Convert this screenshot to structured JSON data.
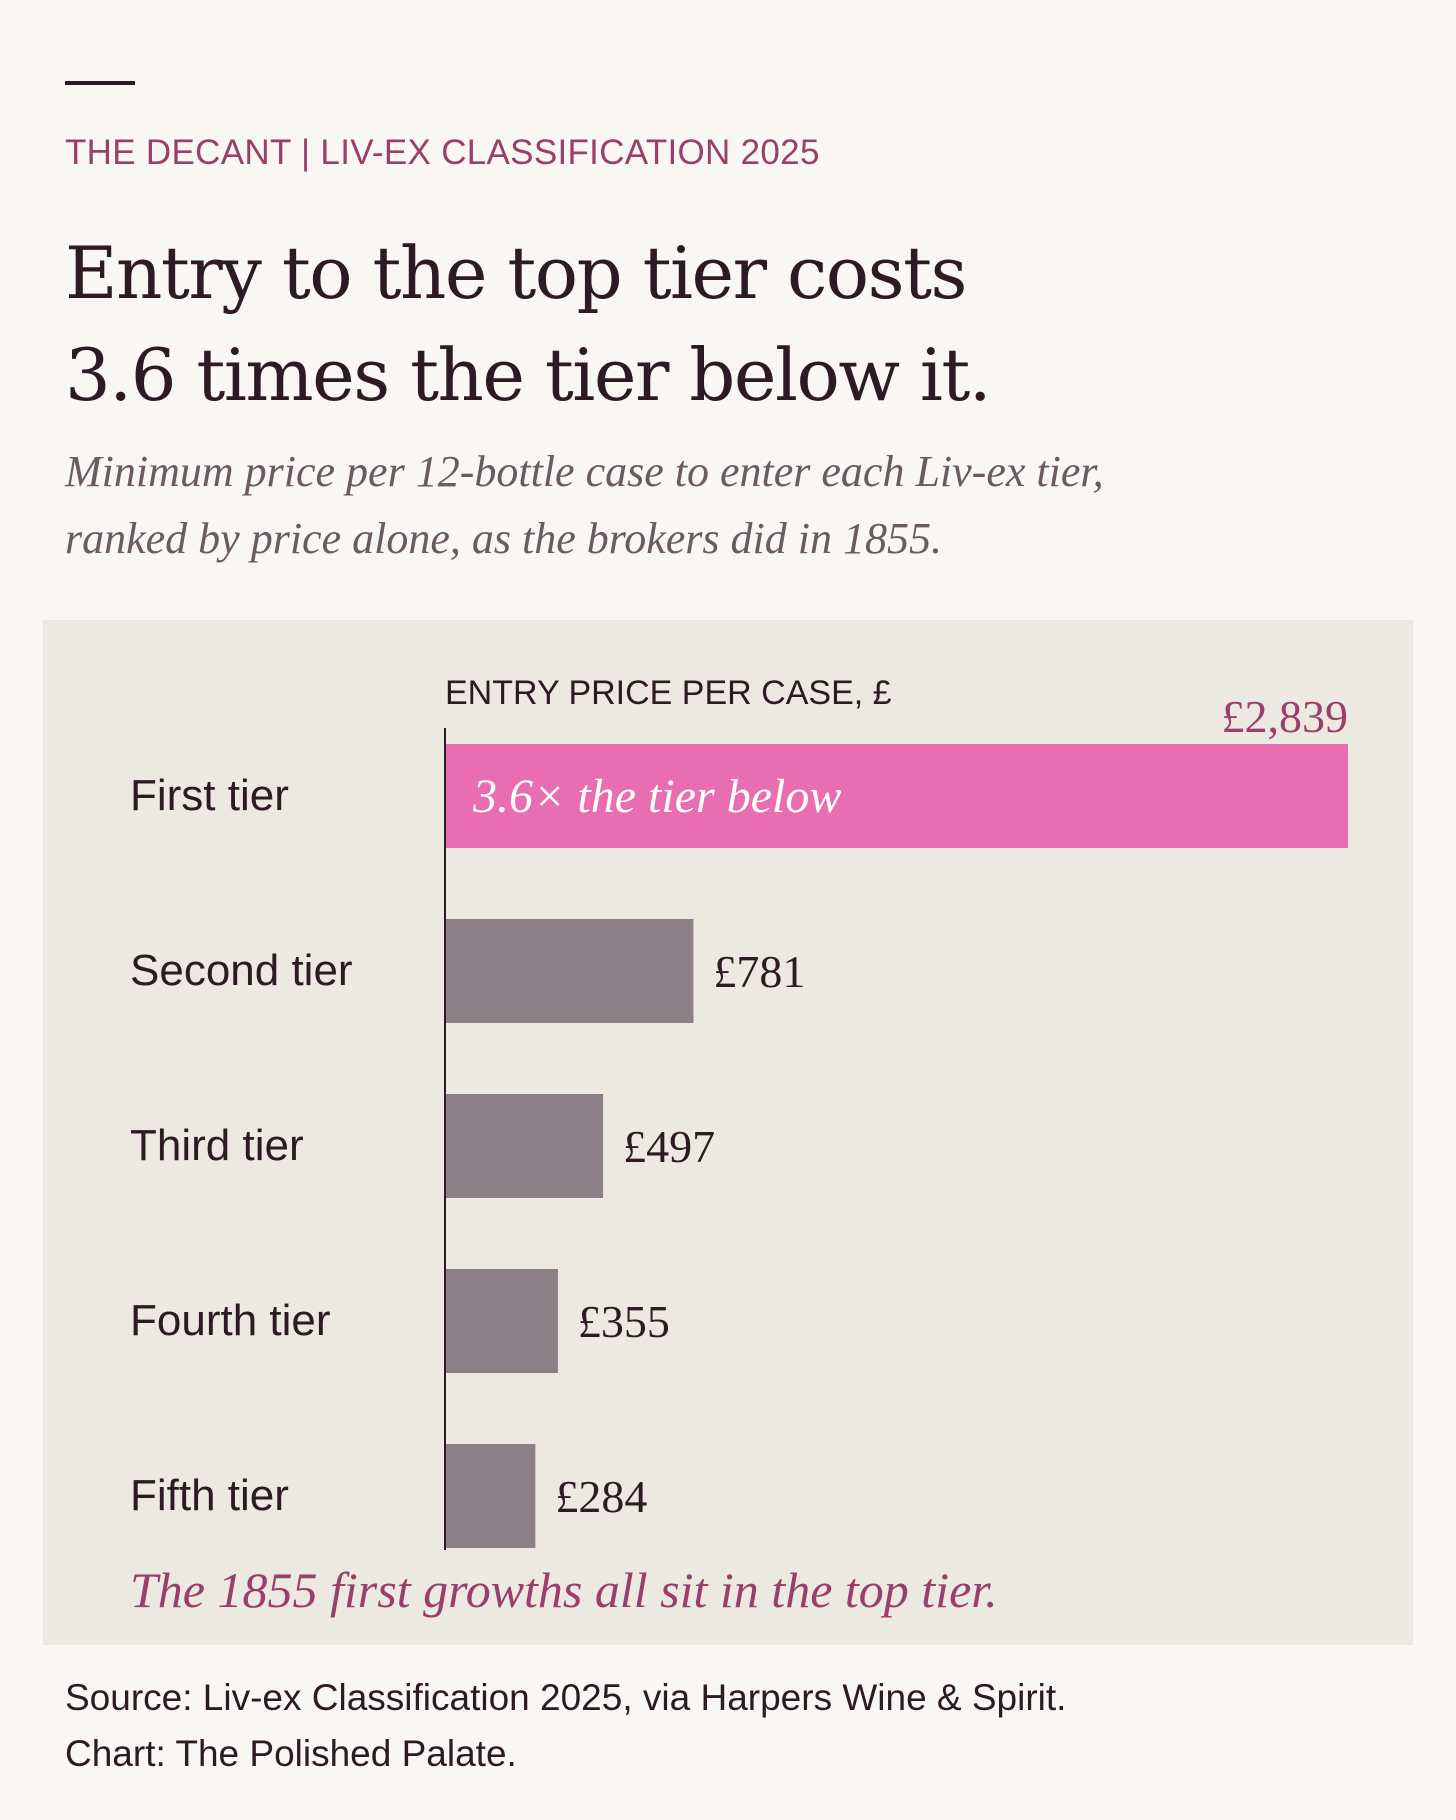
{
  "header": {
    "kicker": "THE DECANT | LIV-EX CLASSIFICATION 2025",
    "headline_line1": "Entry to the top tier costs",
    "headline_line2": "3.6 times the tier below it.",
    "subtitle_line1": "Minimum price per 12-bottle case to enter each Liv-ex tier,",
    "subtitle_line2": "ranked by price alone, as the brokers did in 1855."
  },
  "chart_data": {
    "type": "bar",
    "orientation": "horizontal",
    "axis_title": "ENTRY PRICE PER CASE, £",
    "categories": [
      "First tier",
      "Second tier",
      "Third tier",
      "Fourth tier",
      "Fifth tier"
    ],
    "values": [
      2839,
      781,
      497,
      355,
      284
    ],
    "value_labels": [
      "£2,839",
      "£781",
      "£497",
      "£355",
      "£284"
    ],
    "xlim": [
      0,
      2839
    ],
    "highlight_index": 0,
    "highlight_label": "3.6× the tier below",
    "annotation": "The 1855 first growths all sit in the top tier.",
    "colors": {
      "highlight": "#e96db1",
      "bar": "#8c8087",
      "highlight_text": "#9a3f6c",
      "text": "#2c1a24",
      "axis": "#2c1a24"
    },
    "grid": false,
    "legend": "none"
  },
  "footer": {
    "source_line1": "Source: Liv-ex Classification 2025, via Harpers Wine & Spirit.",
    "source_line2": "Chart: The Polished Palate."
  }
}
